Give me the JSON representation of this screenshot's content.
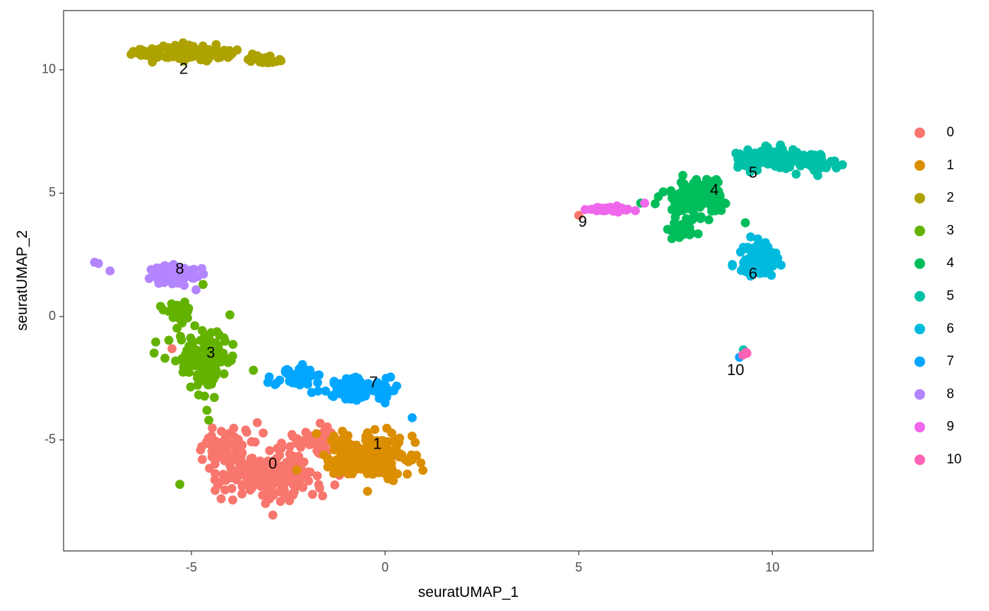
{
  "chart_data": {
    "type": "scatter",
    "title": "",
    "xlabel": "seuratUMAP_1",
    "ylabel": "seuratUMAP_2",
    "xlim": [
      -8.3,
      12.6
    ],
    "ylim": [
      -9.5,
      12.4
    ],
    "x_ticks": [
      -5,
      0,
      5,
      10
    ],
    "y_ticks": [
      -5,
      0,
      5,
      10
    ],
    "x_tick_labels": [
      "-5",
      "0",
      "5",
      "10"
    ],
    "y_tick_labels": [
      "-5",
      "0",
      "5",
      "10"
    ],
    "grid": false,
    "legend_position": "right",
    "point_seed": 7,
    "series": [
      {
        "name": "0",
        "color": "#F8766D",
        "label": "0",
        "label_pos": [
          -2.9,
          -6.0
        ],
        "n": 320,
        "blobs": [
          [
            -3.0,
            -6.4,
            1.2,
            0.95,
            0.9
          ],
          [
            -4.1,
            -5.2,
            0.6,
            0.5,
            0.25
          ],
          [
            -1.8,
            -5.0,
            0.5,
            0.45,
            0.2
          ]
        ],
        "extra": [
          [
            5.0,
            4.1
          ],
          [
            -5.5,
            -1.3
          ],
          [
            -5.3,
            -0.1
          ],
          [
            -3.6,
            -4.6
          ],
          [
            -3.3,
            -4.3
          ]
        ]
      },
      {
        "name": "1",
        "color": "#DB8E00",
        "label": "1",
        "label_pos": [
          -0.2,
          -5.2
        ],
        "n": 220,
        "blobs": [
          [
            -0.5,
            -5.6,
            0.9,
            0.85,
            1.0
          ]
        ],
        "extra": []
      },
      {
        "name": "2",
        "color": "#AEA200",
        "label": "2",
        "label_pos": [
          -5.2,
          10.0
        ],
        "n": 170,
        "blobs": [
          [
            -5.0,
            10.7,
            1.0,
            0.25,
            0.7
          ],
          [
            -6.2,
            10.7,
            0.4,
            0.25,
            0.15
          ],
          [
            -3.1,
            10.4,
            0.45,
            0.15,
            0.15
          ]
        ],
        "extra": []
      },
      {
        "name": "3",
        "color": "#64B200",
        "label": "3",
        "label_pos": [
          -4.5,
          -1.5
        ],
        "n": 170,
        "blobs": [
          [
            -4.7,
            -1.7,
            0.7,
            0.95,
            0.8
          ],
          [
            -5.3,
            0.2,
            0.3,
            0.45,
            0.2
          ]
        ],
        "extra": [
          [
            -5.3,
            -6.8
          ],
          [
            -4.6,
            -3.8
          ],
          [
            -4.55,
            -4.2
          ],
          [
            -4.7,
            1.3
          ]
        ]
      },
      {
        "name": "4",
        "color": "#00BD5C",
        "label": "4",
        "label_pos": [
          8.5,
          5.1
        ],
        "n": 170,
        "blobs": [
          [
            8.0,
            4.8,
            0.6,
            0.7,
            0.8
          ],
          [
            7.7,
            3.5,
            0.35,
            0.25,
            0.2
          ]
        ],
        "extra": [
          [
            6.6,
            4.6
          ],
          [
            9.3,
            3.8
          ]
        ]
      },
      {
        "name": "5",
        "color": "#00C1A7",
        "label": "5",
        "label_pos": [
          9.5,
          5.8
        ],
        "n": 190,
        "blobs": [
          [
            9.8,
            6.4,
            0.75,
            0.35,
            0.7
          ],
          [
            11.1,
            6.2,
            0.45,
            0.3,
            0.3
          ]
        ],
        "extra": [
          [
            9.25,
            -1.35
          ]
        ]
      },
      {
        "name": "6",
        "color": "#00BADE",
        "label": "6",
        "label_pos": [
          9.5,
          1.7
        ],
        "n": 110,
        "blobs": [
          [
            9.7,
            2.3,
            0.45,
            0.6,
            1.0
          ]
        ],
        "extra": []
      },
      {
        "name": "7",
        "color": "#00A6FF",
        "label": "7",
        "label_pos": [
          -0.3,
          -2.7
        ],
        "n": 160,
        "blobs": [
          [
            -0.7,
            -2.9,
            0.9,
            0.35,
            0.7
          ],
          [
            -2.3,
            -2.4,
            0.45,
            0.35,
            0.3
          ]
        ],
        "extra": [
          [
            0.7,
            -4.1
          ],
          [
            0.0,
            -3.5
          ],
          [
            9.15,
            -1.65
          ]
        ]
      },
      {
        "name": "8",
        "color": "#B385FF",
        "label": "8",
        "label_pos": [
          -5.3,
          1.9
        ],
        "n": 110,
        "blobs": [
          [
            -5.4,
            1.7,
            0.5,
            0.35,
            1.0
          ]
        ],
        "extra": [
          [
            -7.5,
            2.2
          ],
          [
            -7.4,
            2.15
          ],
          [
            -7.1,
            1.85
          ]
        ]
      },
      {
        "name": "9",
        "color": "#EF67EB",
        "label": "9",
        "label_pos": [
          5.1,
          3.8
        ],
        "n": 40,
        "blobs": [
          [
            5.8,
            4.35,
            0.55,
            0.08,
            1.0
          ]
        ],
        "extra": [
          [
            6.7,
            4.6
          ]
        ]
      },
      {
        "name": "10",
        "color": "#FF63B6",
        "label": "10",
        "label_pos": [
          9.05,
          -2.2
        ],
        "n": 4,
        "blobs": [
          [
            9.3,
            -1.5,
            0.08,
            0.08,
            1.0
          ]
        ],
        "extra": []
      }
    ]
  }
}
